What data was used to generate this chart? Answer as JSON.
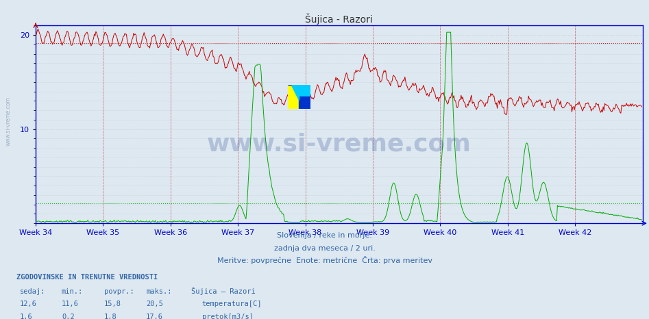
{
  "title": "Šujica - Razori",
  "background_color": "#dde8f0",
  "plot_bg_color": "#dde8f0",
  "grid_color": "#b8c8d8",
  "weeks": [
    "Week 34",
    "Week 35",
    "Week 36",
    "Week 37",
    "Week 38",
    "Week 39",
    "Week 40",
    "Week 41",
    "Week 42"
  ],
  "week_positions": [
    0,
    84,
    168,
    252,
    336,
    420,
    504,
    588,
    672
  ],
  "total_points": 756,
  "ylim": [
    0,
    21
  ],
  "temp_max_line": 19.1,
  "flow_min_line": 0.18,
  "flow_max_raw": 17.6,
  "temp_color": "#cc0000",
  "flow_color": "#00aa00",
  "axis_color": "#0000cc",
  "text_color": "#3366aa",
  "subtitle1": "Slovenija / reke in morje.",
  "subtitle2": "zadnja dva meseca / 2 uri.",
  "subtitle3": "Meritve: povprečne  Enote: metrične  Črta: prva meritev",
  "footer_title": "ZGODOVINSKE IN TRENUTNE VREDNOSTI",
  "col_headers": [
    "sedaj:",
    "min.:",
    "povpr.:",
    "maks.:",
    "Šujica – Razori"
  ],
  "row1": [
    "12,6",
    "11,6",
    "15,8",
    "20,5",
    "temperatura[C]"
  ],
  "row2": [
    "1,6",
    "0,2",
    "1,8",
    "17,6",
    "pretok[m3/s]"
  ],
  "watermark": "www.si-vreme.com",
  "watermark_color": "#1a3a8a",
  "side_text": "www.si-vreme.com"
}
